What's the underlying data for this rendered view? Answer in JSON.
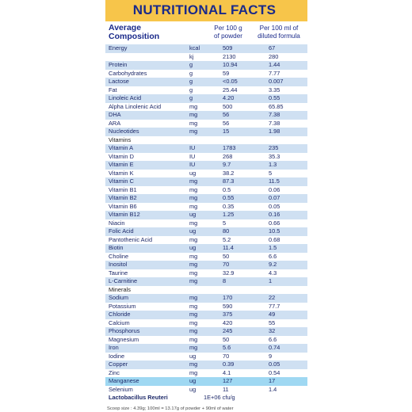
{
  "header": {
    "sub_text": "",
    "title": "NUTRITIONAL FACTS"
  },
  "columns": {
    "composition_line1": "Average",
    "composition_line2": "Composition",
    "per100g_line1": "Per 100 g",
    "per100g_line2": "of powder",
    "per100ml_line1": "Per 100 ml of",
    "per100ml_line2": "diluted formula"
  },
  "rows": [
    {
      "name": "Energy",
      "unit": "kcal",
      "g": "509",
      "ml": "67"
    },
    {
      "name": "",
      "unit": "kj",
      "g": "2130",
      "ml": "280"
    },
    {
      "name": "Protein",
      "unit": "g",
      "g": "10.94",
      "ml": "1.44"
    },
    {
      "name": "Carbohydrates",
      "unit": "g",
      "g": "59",
      "ml": "7.77"
    },
    {
      "name": "Lactose",
      "unit": "g",
      "g": "<0.05",
      "ml": "0.007"
    },
    {
      "name": "Fat",
      "unit": "g",
      "g": "25.44",
      "ml": "3.35"
    },
    {
      "name": "Linoleic Acid",
      "unit": "g",
      "g": "4.20",
      "ml": "0.55"
    },
    {
      "name": "Alpha Linolenic Acid",
      "unit": "mg",
      "g": "500",
      "ml": "65.85"
    },
    {
      "name": "DHA",
      "unit": "mg",
      "g": "56",
      "ml": "7.38"
    },
    {
      "name": "ARA",
      "unit": "mg",
      "g": "56",
      "ml": "7.38"
    },
    {
      "name": "Nucleotides",
      "unit": "mg",
      "g": "15",
      "ml": "1.98"
    },
    {
      "name": "Vitamins",
      "unit": "",
      "g": "",
      "ml": ""
    },
    {
      "name": "Vitamin A",
      "unit": "IU",
      "g": "1783",
      "ml": "235"
    },
    {
      "name": "Vitamin D",
      "unit": "IU",
      "g": "268",
      "ml": "35.3"
    },
    {
      "name": "Vitamin E",
      "unit": "IU",
      "g": "9.7",
      "ml": "1.3"
    },
    {
      "name": "Vitamin K",
      "unit": "ug",
      "g": "38.2",
      "ml": "5"
    },
    {
      "name": "Vitamin C",
      "unit": "mg",
      "g": "87.3",
      "ml": "11.5"
    },
    {
      "name": "Vitamin B1",
      "unit": "mg",
      "g": "0.5",
      "ml": "0.06"
    },
    {
      "name": "Vitamin B2",
      "unit": "mg",
      "g": "0.55",
      "ml": "0.07"
    },
    {
      "name": "Vitamin B6",
      "unit": "mg",
      "g": "0.35",
      "ml": "0.05"
    },
    {
      "name": "Vitamin B12",
      "unit": "ug",
      "g": "1.25",
      "ml": "0.16"
    },
    {
      "name": "Niacin",
      "unit": "mg",
      "g": "5",
      "ml": "0.66"
    },
    {
      "name": "Folic Acid",
      "unit": "ug",
      "g": "80",
      "ml": "10.5"
    },
    {
      "name": "Pantothenic Acid",
      "unit": "mg",
      "g": "5.2",
      "ml": "0.68"
    },
    {
      "name": "Biotin",
      "unit": "ug",
      "g": "11.4",
      "ml": "1.5"
    },
    {
      "name": "Choline",
      "unit": "mg",
      "g": "50",
      "ml": "6.6"
    },
    {
      "name": "Inositol",
      "unit": "mg",
      "g": "70",
      "ml": "9.2"
    },
    {
      "name": "Taurine",
      "unit": "mg",
      "g": "32.9",
      "ml": "4.3"
    },
    {
      "name": "L-Carnitine",
      "unit": "mg",
      "g": "8",
      "ml": "1"
    },
    {
      "name": "Minerals",
      "unit": "",
      "g": "",
      "ml": ""
    },
    {
      "name": "Sodium",
      "unit": "mg",
      "g": "170",
      "ml": "22"
    },
    {
      "name": "Potassium",
      "unit": "mg",
      "g": "590",
      "ml": "77.7"
    },
    {
      "name": "Chloride",
      "unit": "mg",
      "g": "375",
      "ml": "49"
    },
    {
      "name": "Calcium",
      "unit": "mg",
      "g": "420",
      "ml": "55"
    },
    {
      "name": "Phosphorus",
      "unit": "mg",
      "g": "245",
      "ml": "32"
    },
    {
      "name": "Magnesium",
      "unit": "mg",
      "g": "50",
      "ml": "6.6"
    },
    {
      "name": "Iron",
      "unit": "mg",
      "g": "5.6",
      "ml": "0.74"
    },
    {
      "name": "Iodine",
      "unit": "ug",
      "g": "70",
      "ml": "9"
    },
    {
      "name": "Copper",
      "unit": "mg",
      "g": "0.39",
      "ml": "0.05"
    },
    {
      "name": "Zinc",
      "unit": "mg",
      "g": "4.1",
      "ml": "0.54"
    },
    {
      "name": "Manganese",
      "unit": "ug",
      "g": "127",
      "ml": "17"
    },
    {
      "name": "Selenium",
      "unit": "ug",
      "g": "11",
      "ml": "1.4"
    },
    {
      "name": "Lactobacillus Reuteri",
      "unit": "",
      "g": "1E+06 cfu/g",
      "ml": ""
    }
  ],
  "footer": {
    "text": "Scoop size : 4.39g; 100ml = 13.17g of powder + 90ml of water"
  },
  "colors": {
    "header_bg": "#f7c54a",
    "title": "#1a2a8a",
    "row_shade": "#cfe0f2",
    "row_highlight": "#9fd8f2"
  }
}
